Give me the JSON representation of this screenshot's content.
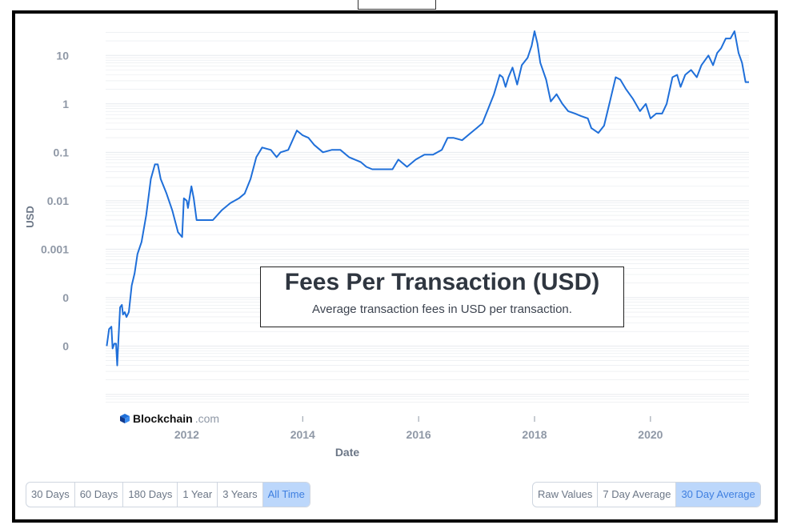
{
  "title": "Fees Per Transaction (USD)",
  "subtitle": "Average transaction fees in USD per transaction.",
  "brand": {
    "name": "Blockchain",
    "suffix": ".com"
  },
  "time_buttons": [
    "30 Days",
    "60 Days",
    "180 Days",
    "1 Year",
    "3 Years",
    "All Time"
  ],
  "time_active": "All Time",
  "avg_buttons": [
    "Raw Values",
    "7 Day Average",
    "30 Day Average"
  ],
  "avg_active": "30 Day Average",
  "colors": {
    "line": "#1f6fd9",
    "grid": "#e6e9ee",
    "tick": "#8f98a6",
    "active_bg": "#bcd7fb"
  },
  "chart_data": {
    "type": "line",
    "xlabel": "Date",
    "ylabel": "USD",
    "yscale": "log",
    "xlim": [
      2010.6,
      2021.7
    ],
    "ylim_exp": [
      -6.2,
      1.55
    ],
    "x_ticks": [
      2012,
      2014,
      2016,
      2018,
      2020
    ],
    "y_ticks": [
      {
        "exp": 1,
        "label": "10"
      },
      {
        "exp": 0,
        "label": "1"
      },
      {
        "exp": -1,
        "label": "0.1"
      },
      {
        "exp": -2,
        "label": "0.01"
      },
      {
        "exp": -3,
        "label": "0.001"
      },
      {
        "exp": -4,
        "label": "0"
      },
      {
        "exp": -5,
        "label": "0"
      }
    ],
    "series": [
      {
        "name": "30 Day Average",
        "points": [
          [
            2010.62,
            -5.0
          ],
          [
            2010.66,
            -4.65
          ],
          [
            2010.7,
            -4.6
          ],
          [
            2010.72,
            -5.05
          ],
          [
            2010.75,
            -4.95
          ],
          [
            2010.78,
            -4.95
          ],
          [
            2010.8,
            -5.4
          ],
          [
            2010.82,
            -4.9
          ],
          [
            2010.85,
            -4.2
          ],
          [
            2010.88,
            -4.15
          ],
          [
            2010.9,
            -4.35
          ],
          [
            2010.93,
            -4.3
          ],
          [
            2010.96,
            -4.4
          ],
          [
            2011.0,
            -4.3
          ],
          [
            2011.05,
            -3.75
          ],
          [
            2011.1,
            -3.5
          ],
          [
            2011.15,
            -3.1
          ],
          [
            2011.22,
            -2.85
          ],
          [
            2011.3,
            -2.3
          ],
          [
            2011.38,
            -1.55
          ],
          [
            2011.45,
            -1.25
          ],
          [
            2011.5,
            -1.25
          ],
          [
            2011.55,
            -1.55
          ],
          [
            2011.65,
            -1.85
          ],
          [
            2011.75,
            -2.2
          ],
          [
            2011.85,
            -2.65
          ],
          [
            2011.92,
            -2.75
          ],
          [
            2011.95,
            -1.95
          ],
          [
            2012.0,
            -2.0
          ],
          [
            2012.02,
            -2.15
          ],
          [
            2012.08,
            -1.7
          ],
          [
            2012.12,
            -1.95
          ],
          [
            2012.17,
            -2.4
          ],
          [
            2012.3,
            -2.4
          ],
          [
            2012.45,
            -2.4
          ],
          [
            2012.6,
            -2.2
          ],
          [
            2012.75,
            -2.05
          ],
          [
            2012.9,
            -1.95
          ],
          [
            2013.0,
            -1.85
          ],
          [
            2013.1,
            -1.55
          ],
          [
            2013.2,
            -1.1
          ],
          [
            2013.3,
            -0.9
          ],
          [
            2013.45,
            -0.95
          ],
          [
            2013.55,
            -1.1
          ],
          [
            2013.62,
            -1.0
          ],
          [
            2013.75,
            -0.95
          ],
          [
            2013.9,
            -0.55
          ],
          [
            2014.0,
            -0.65
          ],
          [
            2014.1,
            -0.7
          ],
          [
            2014.2,
            -0.85
          ],
          [
            2014.35,
            -1.0
          ],
          [
            2014.5,
            -0.95
          ],
          [
            2014.65,
            -0.95
          ],
          [
            2014.8,
            -1.1
          ],
          [
            2015.0,
            -1.2
          ],
          [
            2015.1,
            -1.3
          ],
          [
            2015.2,
            -1.35
          ],
          [
            2015.3,
            -1.35
          ],
          [
            2015.45,
            -1.35
          ],
          [
            2015.55,
            -1.35
          ],
          [
            2015.65,
            -1.15
          ],
          [
            2015.8,
            -1.3
          ],
          [
            2015.95,
            -1.15
          ],
          [
            2016.1,
            -1.05
          ],
          [
            2016.25,
            -1.05
          ],
          [
            2016.4,
            -0.95
          ],
          [
            2016.5,
            -0.7
          ],
          [
            2016.6,
            -0.7
          ],
          [
            2016.75,
            -0.75
          ],
          [
            2016.9,
            -0.6
          ],
          [
            2017.0,
            -0.5
          ],
          [
            2017.1,
            -0.4
          ],
          [
            2017.2,
            -0.1
          ],
          [
            2017.3,
            0.2
          ],
          [
            2017.4,
            0.6
          ],
          [
            2017.45,
            0.55
          ],
          [
            2017.5,
            0.35
          ],
          [
            2017.55,
            0.55
          ],
          [
            2017.62,
            0.75
          ],
          [
            2017.7,
            0.4
          ],
          [
            2017.78,
            0.8
          ],
          [
            2017.88,
            0.95
          ],
          [
            2017.95,
            1.2
          ],
          [
            2018.0,
            1.5
          ],
          [
            2018.05,
            1.25
          ],
          [
            2018.1,
            0.85
          ],
          [
            2018.2,
            0.5
          ],
          [
            2018.28,
            0.05
          ],
          [
            2018.38,
            0.2
          ],
          [
            2018.48,
            0.0
          ],
          [
            2018.58,
            -0.15
          ],
          [
            2018.7,
            -0.2
          ],
          [
            2018.8,
            -0.25
          ],
          [
            2018.92,
            -0.3
          ],
          [
            2018.98,
            -0.5
          ],
          [
            2019.1,
            -0.6
          ],
          [
            2019.2,
            -0.45
          ],
          [
            2019.3,
            0.05
          ],
          [
            2019.4,
            0.55
          ],
          [
            2019.48,
            0.5
          ],
          [
            2019.58,
            0.3
          ],
          [
            2019.7,
            0.1
          ],
          [
            2019.82,
            -0.15
          ],
          [
            2019.92,
            0.0
          ],
          [
            2020.0,
            -0.3
          ],
          [
            2020.1,
            -0.2
          ],
          [
            2020.2,
            -0.2
          ],
          [
            2020.28,
            0.0
          ],
          [
            2020.38,
            0.55
          ],
          [
            2020.46,
            0.6
          ],
          [
            2020.52,
            0.35
          ],
          [
            2020.6,
            0.6
          ],
          [
            2020.7,
            0.7
          ],
          [
            2020.8,
            0.55
          ],
          [
            2020.88,
            0.8
          ],
          [
            2021.0,
            1.0
          ],
          [
            2021.08,
            0.8
          ],
          [
            2021.15,
            1.05
          ],
          [
            2021.22,
            1.15
          ],
          [
            2021.3,
            1.35
          ],
          [
            2021.38,
            1.35
          ],
          [
            2021.45,
            1.5
          ],
          [
            2021.52,
            1.05
          ],
          [
            2021.58,
            0.85
          ],
          [
            2021.64,
            0.45
          ],
          [
            2021.7,
            0.45
          ]
        ]
      }
    ]
  }
}
